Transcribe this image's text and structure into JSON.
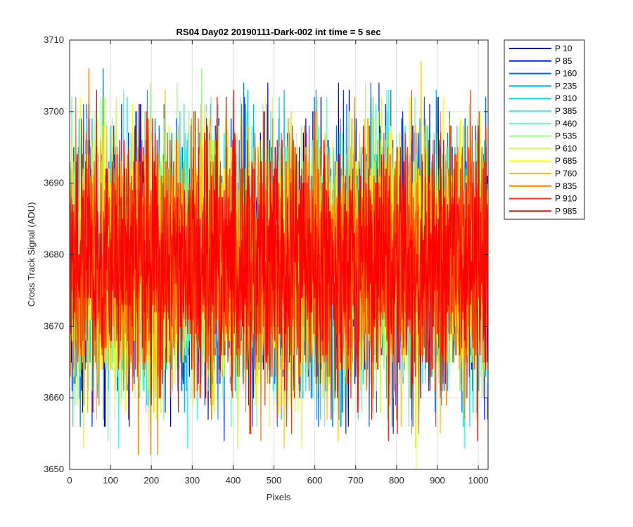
{
  "chart_data": {
    "type": "line",
    "title": "RS04 Day02 20190111-Dark-002 int time = 5 sec",
    "xlabel": "Pixels",
    "ylabel": "Cross Track Signal (ADU)",
    "xlim": [
      0,
      1024
    ],
    "ylim": [
      3650,
      3710
    ],
    "xticks": [
      0,
      100,
      200,
      300,
      400,
      500,
      600,
      700,
      800,
      900,
      1000
    ],
    "yticks": [
      3650,
      3660,
      3670,
      3680,
      3690,
      3700,
      3710
    ],
    "grid": true,
    "legend_position": "outside-top-right",
    "n_points": 1024,
    "series": [
      {
        "name": "P 10",
        "color": "#0000b8",
        "mean": 3679,
        "min": 3656,
        "max": 3706
      },
      {
        "name": "P 85",
        "color": "#0022ff",
        "mean": 3679,
        "min": 3654,
        "max": 3706
      },
      {
        "name": "P 160",
        "color": "#0066ff",
        "mean": 3679,
        "min": 3656,
        "max": 3706
      },
      {
        "name": "P 235",
        "color": "#00a6ff",
        "mean": 3679,
        "min": 3657,
        "max": 3703
      },
      {
        "name": "P 310",
        "color": "#00e2ff",
        "mean": 3679,
        "min": 3656,
        "max": 3702
      },
      {
        "name": "P 385",
        "color": "#33ffe8",
        "mean": 3679,
        "min": 3653,
        "max": 3703
      },
      {
        "name": "P 460",
        "color": "#66ffb8",
        "mean": 3679,
        "min": 3656,
        "max": 3702
      },
      {
        "name": "P 535",
        "color": "#99ff80",
        "mean": 3679,
        "min": 3655,
        "max": 3706
      },
      {
        "name": "P 610",
        "color": "#ccff40",
        "mean": 3679,
        "min": 3653,
        "max": 3703
      },
      {
        "name": "P 685",
        "color": "#ffff00",
        "mean": 3679,
        "min": 3650,
        "max": 3702
      },
      {
        "name": "P 760",
        "color": "#ffc000",
        "mean": 3679,
        "min": 3652,
        "max": 3707
      },
      {
        "name": "P 835",
        "color": "#ff7a00",
        "mean": 3679,
        "min": 3652,
        "max": 3706
      },
      {
        "name": "P 910",
        "color": "#ff3a00",
        "mean": 3679,
        "min": 3651,
        "max": 3703
      },
      {
        "name": "P 985",
        "color": "#ff0000",
        "mean": 3679,
        "min": 3650,
        "max": 3703
      }
    ]
  }
}
